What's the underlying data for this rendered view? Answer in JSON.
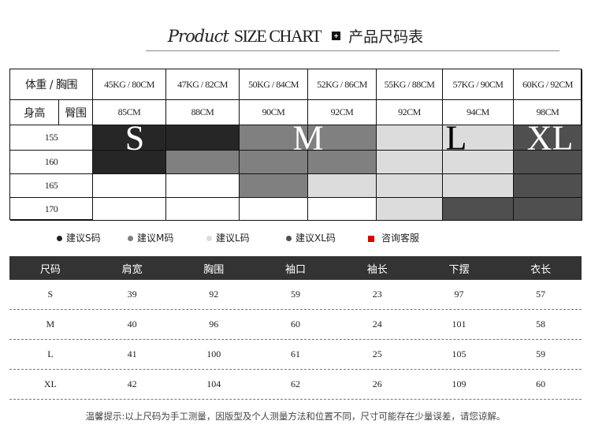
{
  "header": {
    "title_italic": "Product",
    "title_main": "SIZE CHART",
    "title_cn": "产品尺码表"
  },
  "size_grid": {
    "label_weight_chest": "体重 / 胸围",
    "label_height": "身高",
    "label_hip": "臀围",
    "columns": [
      "45KG / 80CM",
      "47KG / 82CM",
      "50KG / 84CM",
      "52KG / 86CM",
      "55KG / 88CM",
      "57KG / 90CM",
      "60KG / 92CM"
    ],
    "hips": [
      "85CM",
      "88CM",
      "90CM",
      "92CM",
      "92CM",
      "94CM",
      "98CM"
    ],
    "heights": [
      "155",
      "160",
      "165",
      "170"
    ],
    "fills": [
      [
        "S",
        "S",
        "M",
        "M",
        "L",
        "L",
        "XL"
      ],
      [
        "S",
        "M",
        "M",
        "M",
        "L",
        "L",
        "XL"
      ],
      [
        "",
        "",
        "M",
        "L",
        "L",
        "L",
        "XL"
      ],
      [
        "",
        "",
        "",
        "",
        "L",
        "XL",
        "XL"
      ]
    ],
    "size_colors": {
      "S": "#262626",
      "M": "#808080",
      "L": "#dcdcdc",
      "XL": "#4f4f4f",
      "": "#ffffff"
    },
    "size_letters": [
      "S",
      "M",
      "L",
      "XL"
    ]
  },
  "legend": [
    {
      "label": "建议S码",
      "color": "#222222"
    },
    {
      "label": "建议M码",
      "color": "#808080"
    },
    {
      "label": "建议L码",
      "color": "#dcdcdc"
    },
    {
      "label": "建议XL码",
      "color": "#4f4f4f"
    },
    {
      "label": "咨询客服",
      "color": "#e00000"
    }
  ],
  "measure_table": {
    "headers": [
      "尺码",
      "肩宽",
      "胸围",
      "袖口",
      "袖长",
      "下摆",
      "衣长"
    ],
    "rows": [
      [
        "S",
        "39",
        "92",
        "59",
        "23",
        "97",
        "57"
      ],
      [
        "M",
        "40",
        "96",
        "60",
        "24",
        "101",
        "58"
      ],
      [
        "L",
        "41",
        "100",
        "61",
        "25",
        "105",
        "59"
      ],
      [
        "XL",
        "42",
        "104",
        "62",
        "26",
        "109",
        "60"
      ]
    ]
  },
  "note": "温馨提示:以上尺码为手工测量，因版型及个人测量方法和位置不同，尺寸可能存在少量误差，请您谅解。"
}
